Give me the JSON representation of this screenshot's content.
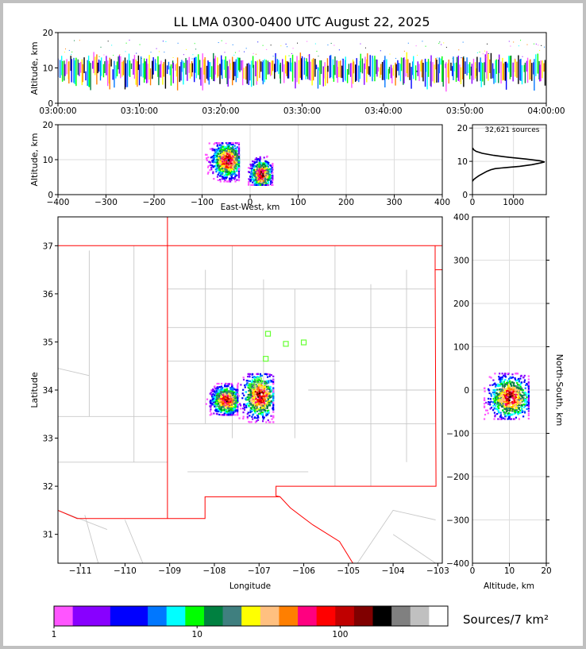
{
  "title": "LL LMA 0300-0400 UTC August 22, 2025",
  "colors": {
    "background": "#ffffff",
    "frame": "#c0c0c0",
    "state_border": "#ff0000",
    "county_lines": "#c8c8c8",
    "grid": "#dddddd",
    "station_marker": "#66ff33",
    "curve": "#000000"
  },
  "colorbar": {
    "label": "Sources/7 km²",
    "scale": "log",
    "colors": [
      "#ff55ff",
      "#8800ff",
      "#8800ff",
      "#0000ff",
      "#0000ff",
      "#0077ff",
      "#00ffff",
      "#00ff00",
      "#008040",
      "#3f7f7f",
      "#ffff00",
      "#ffc080",
      "#ff7f00",
      "#ff0080",
      "#ff0000",
      "#c00000",
      "#800000",
      "#000000",
      "#808080",
      "#c0c0c0",
      "#ffffff"
    ],
    "tick_labels": [
      "1",
      "10",
      "100"
    ]
  },
  "chart_data": [
    {
      "id": "time_height",
      "type": "scatter",
      "title": "",
      "xlabel": "",
      "ylabel": "Altitude, km",
      "xlim": [
        "03:00:00",
        "04:00:00"
      ],
      "ylim": [
        0,
        20
      ],
      "xticks": [
        "03:00:00",
        "03:10:00",
        "03:20:00",
        "03:30:00",
        "03:40:00",
        "03:50:00",
        "04:00:00"
      ],
      "yticks": [
        "0",
        "10",
        "20"
      ],
      "summary": {
        "typical_altitude_km": [
          7,
          12
        ],
        "max_altitude_km": 18
      }
    },
    {
      "id": "ew_altitude",
      "type": "heatmap",
      "xlabel": "East-West, km",
      "ylabel": "Altitude, km",
      "xlim": [
        -400,
        400
      ],
      "ylim": [
        0,
        20
      ],
      "xticks": [
        "−400",
        "−300",
        "−200",
        "−100",
        "0",
        "100",
        "200",
        "300",
        "400"
      ],
      "yticks": [
        "0",
        "10",
        "20"
      ],
      "clusters": [
        {
          "x": [
            -95,
            -25
          ],
          "y": [
            4,
            15
          ],
          "peak_x": -48,
          "peak_y": 10
        },
        {
          "x": [
            -5,
            45
          ],
          "y": [
            3,
            12
          ],
          "peak_x": 22,
          "peak_y": 6
        }
      ]
    },
    {
      "id": "altitude_histogram",
      "type": "line",
      "annotation": "32,621 sources",
      "xlim": [
        0,
        1800
      ],
      "ylim": [
        0,
        21
      ],
      "xticks": [
        "0",
        "1000"
      ],
      "yticks": [
        "0",
        "10",
        "20"
      ],
      "x": [
        0,
        30,
        80,
        160,
        250,
        350,
        450,
        550,
        700,
        900,
        1150,
        1450,
        1650,
        1760,
        1640,
        1300,
        900,
        520,
        240,
        90,
        30,
        5
      ],
      "y": [
        4,
        4.5,
        5,
        5.7,
        6.3,
        7,
        7.5,
        7.8,
        8,
        8.2,
        8.5,
        9,
        9.5,
        9.8,
        10.2,
        10.7,
        11.2,
        11.8,
        12.4,
        13,
        13.5,
        14
      ]
    },
    {
      "id": "plan_view",
      "type": "heatmap",
      "xlabel": "Longitude",
      "ylabel": "Latitude",
      "xlim": [
        -111.5,
        -102.9
      ],
      "ylim": [
        30.4,
        37.6
      ],
      "xticks": [
        "−111",
        "−110",
        "−109",
        "−108",
        "−107",
        "−106",
        "−105",
        "−104",
        "−103"
      ],
      "yticks": [
        "31",
        "32",
        "33",
        "34",
        "35",
        "36",
        "37"
      ],
      "stations": [
        {
          "lon": -106.8,
          "lat": 35.17
        },
        {
          "lon": -106.4,
          "lat": 34.96
        },
        {
          "lon": -106.0,
          "lat": 34.99
        },
        {
          "lon": -106.85,
          "lat": 34.65
        },
        {
          "lon": -107.0,
          "lat": 34.2
        },
        {
          "lon": -107.15,
          "lat": 34.08
        }
      ],
      "clusters": [
        {
          "lon": [
            -108.2,
            -107.5
          ],
          "lat": [
            33.5,
            34.15
          ],
          "peak_lon": -107.75,
          "peak_lat": 33.8
        },
        {
          "lon": [
            -107.5,
            -106.7
          ],
          "lat": [
            33.35,
            34.35
          ],
          "peak_lon": -107.0,
          "peak_lat": 33.9
        }
      ]
    },
    {
      "id": "altitude_ns",
      "type": "heatmap",
      "xlabel": "Altitude, km",
      "ylabel": "North-South, km",
      "xlim": [
        0,
        20
      ],
      "ylim": [
        -400,
        400
      ],
      "xticks": [
        "0",
        "10",
        "20"
      ],
      "yticks": [
        "−400",
        "−300",
        "−200",
        "−100",
        "0",
        "100",
        "200",
        "300",
        "400"
      ],
      "clusters": [
        {
          "x": [
            3,
            15
          ],
          "y": [
            -65,
            40
          ],
          "peak_x": 10,
          "peak_y": -15
        }
      ]
    }
  ]
}
